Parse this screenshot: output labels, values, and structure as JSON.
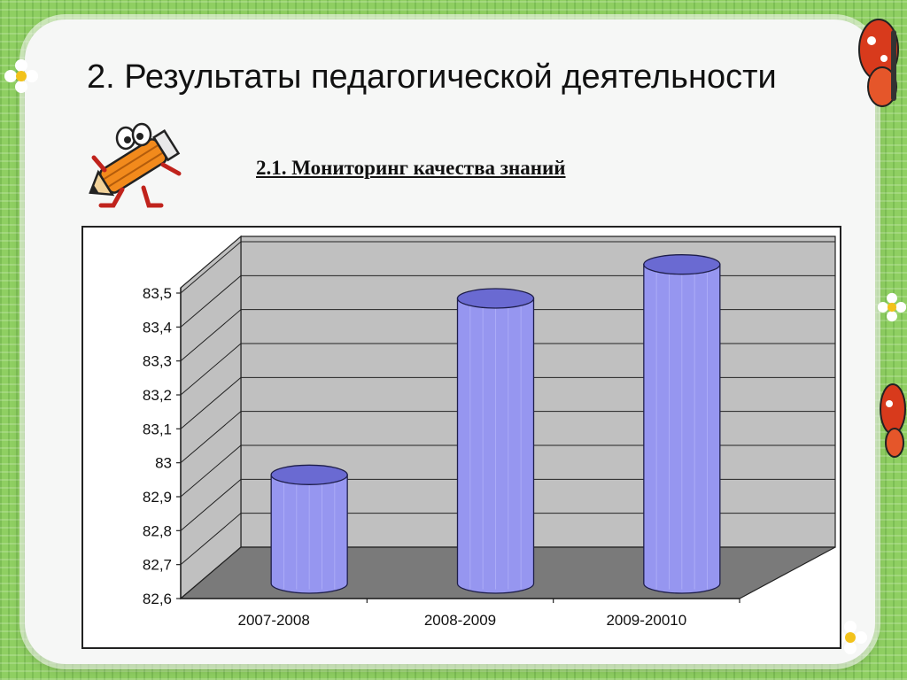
{
  "slide": {
    "title": "2.  Результаты педагогической деятельности",
    "subtitle": "2.1. Мониторинг качества знаний"
  },
  "colors": {
    "background_green": "#8fcf62",
    "card": "#f6f7f6",
    "wall": "#c0c0c0",
    "floor": "#7a7a7a",
    "bar_front": "#9696f0",
    "bar_top": "#6a6ad2",
    "bar_outline": "#1e1e4a"
  },
  "icons": [
    "pencil-mascot-icon",
    "butterfly-icon",
    "flower-icon"
  ],
  "chart_data": {
    "type": "bar",
    "style": "3d-cylinder",
    "categories": [
      "2007-2008",
      "2008-2009",
      "2009-20010"
    ],
    "values": [
      82.92,
      83.44,
      83.54
    ],
    "yticks": [
      "82,6",
      "82,7",
      "82,8",
      "82,9",
      "83",
      "83,1",
      "83,2",
      "83,3",
      "83,4",
      "83,5"
    ],
    "ylim": [
      82.6,
      83.5
    ],
    "grid": true,
    "legend": "none",
    "title": "",
    "xlabel": "",
    "ylabel": ""
  }
}
